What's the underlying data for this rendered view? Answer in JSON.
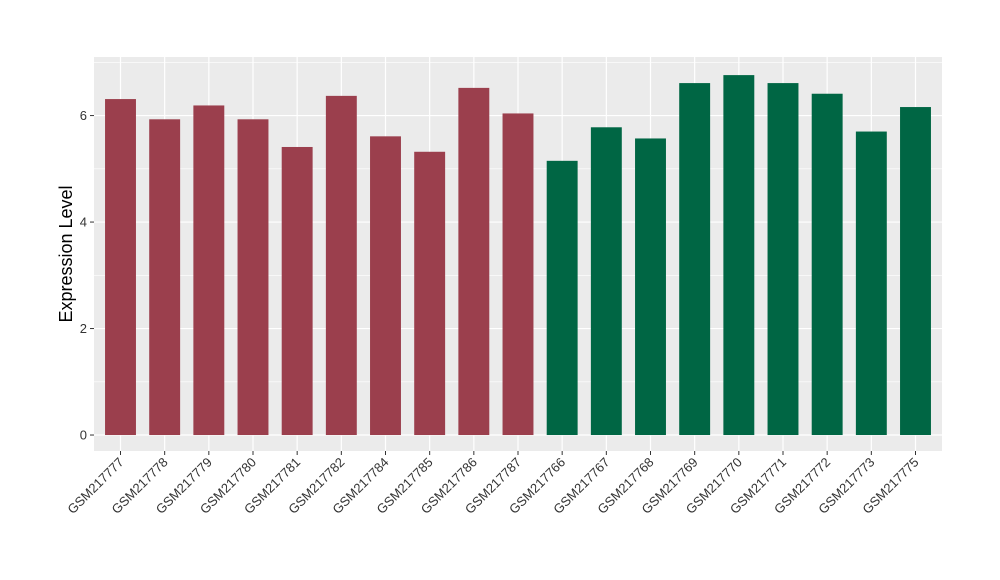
{
  "chart_data": {
    "type": "bar",
    "ylabel": "Expression Level",
    "xlabel": "",
    "ylim": [
      -0.3,
      7.1
    ],
    "yticks": [
      0,
      2,
      4,
      6
    ],
    "grid": true,
    "legend": "none",
    "categories": [
      "GSM217777",
      "GSM217778",
      "GSM217779",
      "GSM217780",
      "GSM217781",
      "GSM217782",
      "GSM217784",
      "GSM217785",
      "GSM217786",
      "GSM217787",
      "GSM217766",
      "GSM217767",
      "GSM217768",
      "GSM217769",
      "GSM217770",
      "GSM217771",
      "GSM217772",
      "GSM217773",
      "GSM217775"
    ],
    "values": [
      6.31,
      5.93,
      6.19,
      5.93,
      5.41,
      6.37,
      5.61,
      5.32,
      6.52,
      6.04,
      5.15,
      5.78,
      5.57,
      6.61,
      6.76,
      6.61,
      6.41,
      5.7,
      6.16
    ],
    "group": [
      0,
      0,
      0,
      0,
      0,
      0,
      0,
      0,
      0,
      0,
      1,
      1,
      1,
      1,
      1,
      1,
      1,
      1,
      1
    ],
    "colors": [
      "#9B3F4D",
      "#006644"
    ],
    "panel_background": "#EBEBEB",
    "gridline_color": "#FFFFFF"
  }
}
